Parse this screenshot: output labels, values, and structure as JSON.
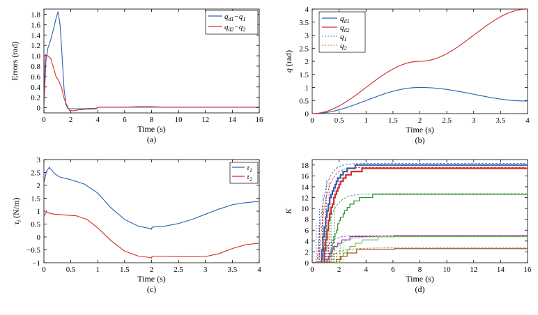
{
  "chart_data": [
    {
      "type": "line",
      "panel_label": "(a)",
      "xlabel": "Time (s)",
      "ylabel": "Errors (rad)",
      "xlim": [
        0,
        16
      ],
      "ylim": [
        -0.1,
        1.9
      ],
      "xticks": [
        0,
        2,
        4,
        6,
        8,
        10,
        12,
        14,
        16
      ],
      "yticks": [
        0,
        0.2,
        0.4,
        0.6,
        0.8,
        1.0,
        1.2,
        1.4,
        1.6,
        1.8
      ],
      "ytick_labels": [
        "0",
        "0.2",
        "0.4",
        "0.6",
        "0.8",
        "1.0",
        "1.2",
        "1.4",
        "1.6",
        "1.8"
      ],
      "legend_position": "top-right",
      "series": [
        {
          "name": "q_d1−q_1",
          "legend": {
            "base1": "q",
            "sub1": "d1",
            "mid": "−q",
            "sub2": "1"
          },
          "color": "#2b5fb3",
          "x": [
            0,
            0.15,
            0.3,
            0.5,
            0.7,
            0.9,
            1.05,
            1.2,
            1.35,
            1.5,
            1.65,
            1.8,
            2.0,
            2.5,
            3,
            3.9,
            4.0,
            5,
            6,
            7,
            8,
            9,
            10,
            11,
            12,
            13,
            14,
            15,
            16
          ],
          "y": [
            0,
            0.9,
            1.15,
            1.3,
            1.5,
            1.72,
            1.85,
            1.6,
            1.0,
            0.35,
            0.05,
            -0.02,
            -0.02,
            -0.02,
            -0.02,
            -0.01,
            0.01,
            0.01,
            0.01,
            0.01,
            0.01,
            0.01,
            0.01,
            0.01,
            0.01,
            0.01,
            0.01,
            0.01,
            0.01
          ]
        },
        {
          "name": "q_d2−q_2",
          "legend": {
            "base1": "q",
            "sub1": "d2",
            "mid": "−q",
            "sub2": "2"
          },
          "color": "#d42a2a",
          "x": [
            0,
            0.1,
            0.3,
            0.5,
            0.7,
            0.9,
            1.1,
            1.3,
            1.5,
            1.7,
            1.9,
            2.2,
            2.6,
            3,
            3.9,
            4.0,
            5,
            6,
            7,
            8,
            9,
            10,
            11,
            12,
            13,
            14,
            15,
            16
          ],
          "y": [
            0.1,
            1.02,
            1.0,
            0.95,
            0.78,
            0.6,
            0.52,
            0.4,
            0.18,
            0.05,
            -0.05,
            -0.06,
            -0.04,
            -0.03,
            -0.02,
            0.01,
            0.01,
            0.01,
            0.02,
            0.02,
            0.01,
            0.01,
            0.01,
            0.01,
            0.01,
            0.01,
            0.01,
            0.01
          ]
        }
      ]
    },
    {
      "type": "line",
      "panel_label": "(b)",
      "xlabel": "Time (s)",
      "ylabel": "q (rad)",
      "xlim": [
        0,
        4
      ],
      "ylim": [
        0,
        4
      ],
      "xticks": [
        0,
        0.5,
        1,
        1.5,
        2,
        2.5,
        3,
        3.5,
        4
      ],
      "yticks": [
        0,
        0.5,
        1,
        1.5,
        2,
        2.5,
        3,
        3.5,
        4
      ],
      "legend_position": "top-left",
      "series": [
        {
          "name": "q_d1",
          "legend": {
            "base1": "q",
            "sub1": "d1"
          },
          "color": "#2b5fb3",
          "fn": "qd1"
        },
        {
          "name": "q_d2",
          "legend": {
            "base1": "q",
            "sub1": "d2"
          },
          "color": "#d42a2a",
          "fn": "qd2"
        },
        {
          "name": "q_1",
          "legend": {
            "base1": "q",
            "sub1": "1"
          },
          "color": "#2b5fb3",
          "fn": "qd1",
          "dashed": true
        },
        {
          "name": "q_2",
          "legend": {
            "base1": "q",
            "sub1": "2"
          },
          "color": "#d42a2a",
          "fn": "qd2",
          "dashed": true
        }
      ]
    },
    {
      "type": "line",
      "panel_label": "(c)",
      "xlabel": "Time (s)",
      "ylabel": "τ_i (N/m)",
      "xlim": [
        0,
        4
      ],
      "ylim": [
        -1,
        3
      ],
      "xticks": [
        0,
        0.5,
        1,
        1.5,
        2,
        2.5,
        3,
        3.5,
        4
      ],
      "yticks": [
        -1,
        -0.5,
        0,
        0.5,
        1,
        1.5,
        2,
        2.5,
        3
      ],
      "ytick_labels": [
        "−1",
        "−0.5",
        "0",
        "0.5",
        "1",
        "1.5",
        "2",
        "2.5",
        "3"
      ],
      "legend_position": "top-right",
      "series": [
        {
          "name": "τ_1",
          "legend": {
            "base1": "τ",
            "sub1": "1"
          },
          "color": "#2b5fb3",
          "x": [
            0,
            0.05,
            0.1,
            0.2,
            0.3,
            0.5,
            0.75,
            1.0,
            1.25,
            1.5,
            1.75,
            1.99,
            2.0,
            2.01,
            2.25,
            2.5,
            2.75,
            3.0,
            3.25,
            3.5,
            3.75,
            4.0
          ],
          "y": [
            2.1,
            2.55,
            2.7,
            2.45,
            2.32,
            2.22,
            2.05,
            1.7,
            1.12,
            0.68,
            0.42,
            0.32,
            0.3,
            0.38,
            0.42,
            0.52,
            0.68,
            0.88,
            1.08,
            1.25,
            1.33,
            1.38
          ]
        },
        {
          "name": "τ_2",
          "legend": {
            "base1": "τ",
            "sub1": "2"
          },
          "color": "#d42a2a",
          "x": [
            0,
            0.05,
            0.1,
            0.2,
            0.4,
            0.6,
            0.8,
            1.0,
            1.25,
            1.5,
            1.75,
            1.99,
            2.0,
            2.01,
            2.25,
            2.5,
            2.75,
            3.0,
            3.25,
            3.5,
            3.75,
            4.0
          ],
          "y": [
            0.8,
            0.98,
            0.92,
            0.88,
            0.85,
            0.82,
            0.68,
            0.35,
            -0.15,
            -0.55,
            -0.74,
            -0.8,
            -0.82,
            -0.75,
            -0.75,
            -0.76,
            -0.77,
            -0.76,
            -0.65,
            -0.45,
            -0.3,
            -0.24
          ]
        }
      ]
    },
    {
      "type": "line",
      "panel_label": "(d)",
      "xlabel": "Time (s)",
      "ylabel": "K",
      "xlim": [
        0,
        16
      ],
      "ylim": [
        0,
        19
      ],
      "xticks": [
        0,
        2,
        4,
        6,
        8,
        10,
        12,
        14,
        16
      ],
      "yticks": [
        0,
        2,
        4,
        6,
        8,
        10,
        12,
        14,
        16,
        18
      ],
      "series": [
        {
          "color": "#2b5fb3",
          "final": 18.1,
          "t0": 0.6,
          "rate": 1.5
        },
        {
          "color": "#d42a2a",
          "final": 17.4,
          "t0": 0.8,
          "rate": 1.45
        },
        {
          "color": "#2f8f2f",
          "final": 12.6,
          "t0": 1.2,
          "rate": 1.15
        },
        {
          "color": "#8a2fa8",
          "final": 5.0,
          "t0": 1.0,
          "rate": 1.3
        },
        {
          "color": "#6cc04a",
          "final": 4.8,
          "t0": 1.9,
          "rate": 0.95
        },
        {
          "color": "#a05a2a",
          "final": 2.7,
          "t0": 1.6,
          "rate": 0.9
        }
      ]
    }
  ]
}
